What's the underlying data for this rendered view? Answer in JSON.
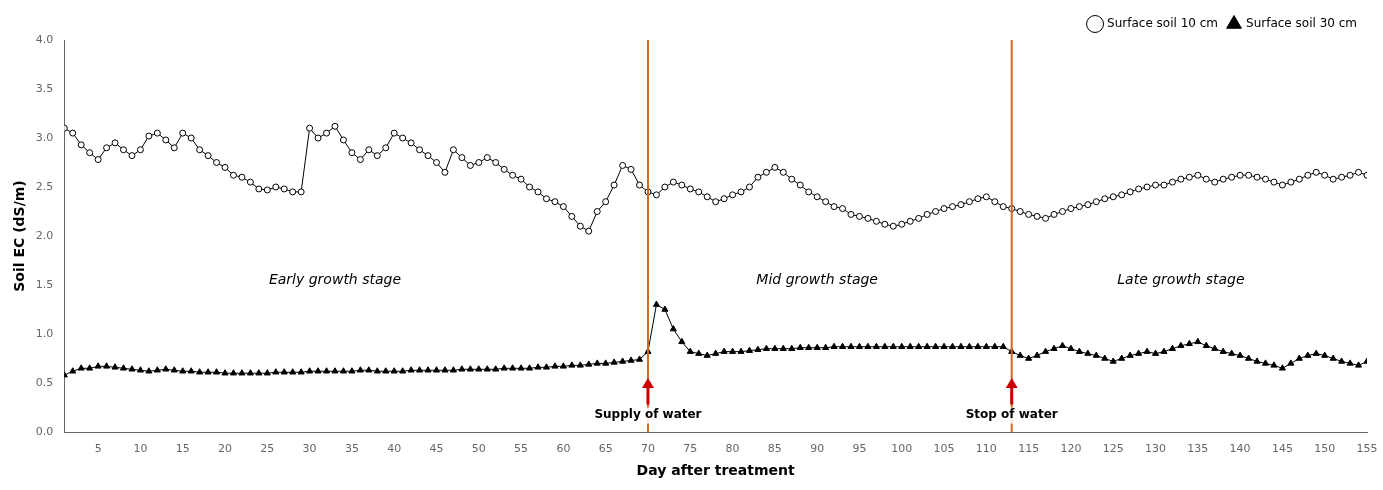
{
  "chart_data": {
    "type": "line",
    "xlabel": "Day after treatment",
    "ylabel": "Soil EC (dS/m)",
    "xlim": [
      1,
      155
    ],
    "ylim": [
      0.0,
      4.0
    ],
    "xticks": [
      5,
      10,
      15,
      20,
      25,
      30,
      35,
      40,
      45,
      50,
      55,
      60,
      65,
      70,
      75,
      80,
      85,
      90,
      95,
      100,
      105,
      110,
      115,
      120,
      125,
      130,
      135,
      140,
      145,
      150,
      155
    ],
    "yticks": [
      {
        "value": 0.0,
        "label": "0.0"
      },
      0.5,
      {
        "value": 1.0,
        "label": "1.0"
      },
      1.5,
      {
        "value": 2.0,
        "label": "2.0"
      },
      2.5,
      {
        "value": 3.0,
        "label": "3.0"
      },
      3.5,
      {
        "value": 4.0,
        "label": "4.0"
      }
    ],
    "grid": false,
    "legend": "upper right",
    "x": [
      1,
      2,
      3,
      4,
      5,
      6,
      7,
      8,
      9,
      10,
      11,
      12,
      13,
      14,
      15,
      16,
      17,
      18,
      19,
      20,
      21,
      22,
      23,
      24,
      25,
      26,
      27,
      28,
      29,
      30,
      31,
      32,
      33,
      34,
      35,
      36,
      37,
      38,
      39,
      40,
      41,
      42,
      43,
      44,
      45,
      46,
      47,
      48,
      49,
      50,
      51,
      52,
      53,
      54,
      55,
      56,
      57,
      58,
      59,
      60,
      61,
      62,
      63,
      64,
      65,
      66,
      67,
      68,
      69,
      70,
      71,
      72,
      73,
      74,
      75,
      76,
      77,
      78,
      79,
      80,
      81,
      82,
      83,
      84,
      85,
      86,
      87,
      88,
      89,
      90,
      91,
      92,
      93,
      94,
      95,
      96,
      97,
      98,
      99,
      100,
      101,
      102,
      103,
      104,
      105,
      106,
      107,
      108,
      109,
      110,
      111,
      112,
      113,
      114,
      115,
      116,
      117,
      118,
      119,
      120,
      121,
      122,
      123,
      124,
      125,
      126,
      127,
      128,
      129,
      130,
      131,
      132,
      133,
      134,
      135,
      136,
      137,
      138,
      139,
      140,
      141,
      142,
      143,
      144,
      145,
      146,
      147,
      148,
      149,
      150,
      151,
      152,
      153,
      154,
      155
    ],
    "series": [
      {
        "name": "Surface soil 10 cm",
        "color": "#000000",
        "marker": "open_circle",
        "values": [
          3.1,
          3.05,
          2.93,
          2.85,
          2.78,
          2.9,
          2.95,
          2.88,
          2.82,
          2.88,
          3.02,
          3.05,
          2.98,
          2.9,
          3.05,
          3.0,
          2.88,
          2.82,
          2.75,
          2.7,
          2.62,
          2.6,
          2.55,
          2.48,
          2.47,
          2.5,
          2.48,
          2.45,
          2.45,
          3.1,
          3.0,
          3.05,
          3.12,
          2.98,
          2.85,
          2.78,
          2.88,
          2.82,
          2.9,
          3.05,
          3.0,
          2.95,
          2.88,
          2.82,
          2.75,
          2.65,
          2.88,
          2.8,
          2.72,
          2.75,
          2.8,
          2.75,
          2.68,
          2.62,
          2.58,
          2.5,
          2.45,
          2.38,
          2.35,
          2.3,
          2.2,
          2.1,
          2.05,
          2.25,
          2.35,
          2.52,
          2.72,
          2.68,
          2.52,
          2.45,
          2.42,
          2.5,
          2.55,
          2.52,
          2.48,
          2.45,
          2.4,
          2.35,
          2.38,
          2.42,
          2.45,
          2.5,
          2.6,
          2.65,
          2.7,
          2.65,
          2.58,
          2.52,
          2.45,
          2.4,
          2.35,
          2.3,
          2.28,
          2.22,
          2.2,
          2.18,
          2.15,
          2.12,
          2.1,
          2.12,
          2.15,
          2.18,
          2.22,
          2.25,
          2.28,
          2.3,
          2.32,
          2.35,
          2.38,
          2.4,
          2.35,
          2.3,
          2.28,
          2.25,
          2.22,
          2.2,
          2.18,
          2.22,
          2.25,
          2.28,
          2.3,
          2.32,
          2.35,
          2.38,
          2.4,
          2.42,
          2.45,
          2.48,
          2.5,
          2.52,
          2.52,
          2.55,
          2.58,
          2.6,
          2.62,
          2.58,
          2.55,
          2.58,
          2.6,
          2.62,
          2.62,
          2.6,
          2.58,
          2.55,
          2.52,
          2.55,
          2.58,
          2.62,
          2.65,
          2.62,
          2.58,
          2.6,
          2.62,
          2.65,
          2.62
        ]
      },
      {
        "name": "Surface soil 30 cm",
        "color": "#000000",
        "marker": "triangle",
        "values": [
          0.58,
          0.62,
          0.65,
          0.65,
          0.67,
          0.67,
          0.66,
          0.65,
          0.64,
          0.63,
          0.62,
          0.63,
          0.64,
          0.63,
          0.62,
          0.62,
          0.61,
          0.61,
          0.61,
          0.6,
          0.6,
          0.6,
          0.6,
          0.6,
          0.6,
          0.61,
          0.61,
          0.61,
          0.61,
          0.62,
          0.62,
          0.62,
          0.62,
          0.62,
          0.62,
          0.63,
          0.63,
          0.62,
          0.62,
          0.62,
          0.62,
          0.63,
          0.63,
          0.63,
          0.63,
          0.63,
          0.63,
          0.64,
          0.64,
          0.64,
          0.64,
          0.64,
          0.65,
          0.65,
          0.65,
          0.65,
          0.66,
          0.66,
          0.67,
          0.67,
          0.68,
          0.68,
          0.69,
          0.7,
          0.7,
          0.71,
          0.72,
          0.73,
          0.74,
          0.82,
          1.3,
          1.25,
          1.05,
          0.92,
          0.82,
          0.8,
          0.78,
          0.8,
          0.82,
          0.82,
          0.82,
          0.83,
          0.84,
          0.85,
          0.85,
          0.85,
          0.85,
          0.86,
          0.86,
          0.86,
          0.86,
          0.87,
          0.87,
          0.87,
          0.87,
          0.87,
          0.87,
          0.87,
          0.87,
          0.87,
          0.87,
          0.87,
          0.87,
          0.87,
          0.87,
          0.87,
          0.87,
          0.87,
          0.87,
          0.87,
          0.87,
          0.87,
          0.82,
          0.78,
          0.75,
          0.78,
          0.82,
          0.85,
          0.88,
          0.85,
          0.82,
          0.8,
          0.78,
          0.75,
          0.72,
          0.75,
          0.78,
          0.8,
          0.82,
          0.8,
          0.82,
          0.85,
          0.88,
          0.9,
          0.92,
          0.88,
          0.85,
          0.82,
          0.8,
          0.78,
          0.75,
          0.72,
          0.7,
          0.68,
          0.65,
          0.7,
          0.75,
          0.78,
          0.8,
          0.78,
          0.75,
          0.72,
          0.7,
          0.68,
          0.72
        ]
      }
    ],
    "annotations": [
      {
        "type": "vline",
        "x": 70,
        "color": "#D2691E"
      },
      {
        "type": "vline",
        "x": 113,
        "color": "#D2691E"
      },
      {
        "type": "arrow",
        "x": 70,
        "y_start": 0.28,
        "y_end": 0.55,
        "color": "#CC0000",
        "label": "Supply of water"
      },
      {
        "type": "arrow",
        "x": 113,
        "y_start": 0.28,
        "y_end": 0.55,
        "color": "#CC0000",
        "label": "Stop of water"
      },
      {
        "type": "text",
        "x": 33,
        "y": 1.55,
        "label": "Early growth stage"
      },
      {
        "type": "text",
        "x": 90,
        "y": 1.55,
        "label": "Mid growth stage"
      },
      {
        "type": "text",
        "x": 133,
        "y": 1.55,
        "label": "Late growth stage"
      }
    ]
  }
}
